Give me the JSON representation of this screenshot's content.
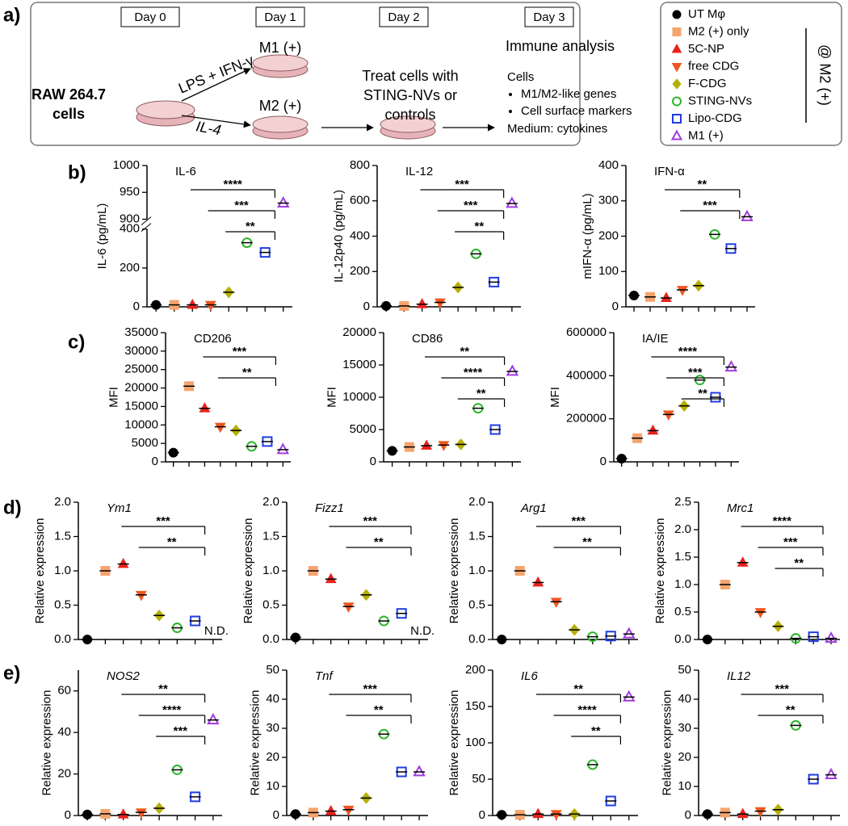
{
  "panel_labels": [
    "a)",
    "b)",
    "c)",
    "d)",
    "e)"
  ],
  "diagram": {
    "days": [
      "Day 0",
      "Day 1",
      "Day 2",
      "Day 3"
    ],
    "start": [
      "RAW 264.7",
      "cells"
    ],
    "m1_treatment": "LPS + IFN-γ",
    "m2_treatment": "IL-4",
    "m1": "M1 (+)",
    "m2": "M2 (+)",
    "treat": [
      "Treat cells with",
      "STING-NVs or",
      "controls"
    ],
    "analysis": "Immune analysis",
    "cells": "Cells",
    "bullets": [
      "M1/M2-like genes",
      "Cell surface markers"
    ],
    "medium": "Medium: cytokines"
  },
  "legend": {
    "entries": [
      {
        "name": "UT Mφ",
        "color": "#000000",
        "marker": "circle",
        "open": false
      },
      {
        "name": "M2 (+) only",
        "color": "#f5a46e",
        "marker": "square",
        "open": false
      },
      {
        "name": "5C-NP",
        "color": "#e8231d",
        "marker": "triangle",
        "open": false
      },
      {
        "name": "free CDG",
        "color": "#f0561e",
        "marker": "triangle-down",
        "open": false
      },
      {
        "name": "F-CDG",
        "color": "#b5b000",
        "marker": "diamond",
        "open": false
      },
      {
        "name": "STING-NVs",
        "color": "#2db52d",
        "marker": "circle",
        "open": true
      },
      {
        "name": "Lipo-CDG",
        "color": "#1f3de0",
        "marker": "square",
        "open": true
      },
      {
        "name": "M1 (+)",
        "color": "#a13be0",
        "marker": "triangle",
        "open": true
      }
    ],
    "bracket_label": "@ M2 (+)"
  },
  "chart_data": [
    {
      "type": "dot",
      "title": "IL-6",
      "ylabel": "IL-6 (pg/mL)",
      "ylim": [
        0,
        1000
      ],
      "axis_break": [
        400,
        900
      ],
      "yticks": [
        0,
        200,
        400,
        900,
        950,
        1000
      ],
      "values": [
        10,
        10,
        10,
        10,
        75,
        330,
        280,
        930
      ],
      "annotations": [
        "****",
        "***",
        "**"
      ]
    },
    {
      "type": "dot",
      "title": "IL-12",
      "ylabel": "IL-12p40 (pg/mL)",
      "ylim": [
        0,
        800
      ],
      "yticks": [
        0,
        200,
        400,
        600,
        800
      ],
      "values": [
        5,
        5,
        15,
        25,
        110,
        300,
        140,
        585
      ],
      "annotations": [
        "***",
        "***",
        "**"
      ]
    },
    {
      "type": "dot",
      "title": "IFN-α",
      "ylabel": "mIFN-α (pg/mL)",
      "ylim": [
        0,
        400
      ],
      "yticks": [
        0,
        100,
        200,
        300,
        400
      ],
      "values": [
        32,
        28,
        25,
        48,
        60,
        205,
        165,
        255
      ],
      "annotations": [
        "**",
        "***"
      ]
    },
    {
      "type": "dot",
      "title": "CD206",
      "ylabel": "MFI",
      "ylim": [
        0,
        35000
      ],
      "yticks": [
        0,
        5000,
        10000,
        15000,
        20000,
        25000,
        30000,
        35000
      ],
      "values": [
        2500,
        20500,
        14500,
        9500,
        8500,
        4200,
        5500,
        3300
      ],
      "annotations": [
        "***",
        "**"
      ]
    },
    {
      "type": "dot",
      "title": "CD86",
      "ylabel": "MFI",
      "ylim": [
        0,
        20000
      ],
      "yticks": [
        0,
        5000,
        10000,
        15000,
        20000
      ],
      "values": [
        1700,
        2300,
        2500,
        2600,
        2700,
        8300,
        5000,
        14000
      ],
      "annotations": [
        "**",
        "****",
        "**"
      ]
    },
    {
      "type": "dot",
      "title": "IA/IE",
      "ylabel": "MFI",
      "ylim": [
        0,
        600000
      ],
      "yticks": [
        0,
        200000,
        400000,
        600000
      ],
      "values": [
        15000,
        110000,
        145000,
        220000,
        260000,
        380000,
        300000,
        440000
      ],
      "annotations": [
        "****",
        "***",
        "**"
      ]
    },
    {
      "type": "dot",
      "title": "Ym1",
      "italic": true,
      "ylabel": "Relative expression",
      "ylim": [
        0,
        2
      ],
      "yticks": [
        {
          "value": 0,
          "label": "0.0"
        },
        {
          "value": 0.5,
          "label": "0.5"
        },
        {
          "value": 1,
          "label": "1.0"
        },
        {
          "value": 1.5,
          "label": "1.5"
        },
        {
          "value": 2,
          "label": "2.0"
        }
      ],
      "values": [
        0,
        1.0,
        1.1,
        0.65,
        0.35,
        0.17,
        0.27,
        null
      ],
      "value_labels": [
        null,
        null,
        null,
        null,
        null,
        null,
        null,
        "N.D."
      ],
      "annotations": [
        "***",
        "**"
      ]
    },
    {
      "type": "dot",
      "title": "Fizz1",
      "italic": true,
      "ylabel": "Relative expression",
      "ylim": [
        0,
        2
      ],
      "yticks": [
        {
          "value": 0,
          "label": "0.0"
        },
        {
          "value": 0.5,
          "label": "0.5"
        },
        {
          "value": 1,
          "label": "1.0"
        },
        {
          "value": 1.5,
          "label": "1.5"
        },
        {
          "value": 2,
          "label": "2.0"
        }
      ],
      "values": [
        0.03,
        1.0,
        0.88,
        0.48,
        0.65,
        0.27,
        0.38,
        null
      ],
      "value_labels": [
        null,
        null,
        null,
        null,
        null,
        null,
        null,
        "N.D."
      ],
      "annotations": [
        "***",
        "**"
      ]
    },
    {
      "type": "dot",
      "title": "Arg1",
      "italic": true,
      "ylabel": "Relative expression",
      "ylim": [
        0,
        2
      ],
      "yticks": [
        {
          "value": 0,
          "label": "0.0"
        },
        {
          "value": 0.5,
          "label": "0.5"
        },
        {
          "value": 1,
          "label": "1.0"
        },
        {
          "value": 1.5,
          "label": "1.5"
        },
        {
          "value": 2,
          "label": "2.0"
        }
      ],
      "values": [
        0,
        1.0,
        0.83,
        0.55,
        0.14,
        0.04,
        0.05,
        0.08
      ],
      "annotations": [
        "***",
        "**"
      ]
    },
    {
      "type": "dot",
      "title": "Mrc1",
      "italic": true,
      "ylabel": "Relative expression",
      "ylim": [
        0,
        2.5
      ],
      "yticks": [
        {
          "value": 0,
          "label": "0.0"
        },
        {
          "value": 0.5,
          "label": "0.5"
        },
        {
          "value": 1,
          "label": "1.0"
        },
        {
          "value": 1.5,
          "label": "1.5"
        },
        {
          "value": 2,
          "label": "2.0"
        },
        {
          "value": 2.5,
          "label": "2.5"
        }
      ],
      "values": [
        0,
        1.0,
        1.4,
        0.5,
        0.24,
        0.02,
        0.05,
        0.02
      ],
      "annotations": [
        "****",
        "***",
        "**"
      ]
    },
    {
      "type": "dot",
      "title": "NOS2",
      "italic": true,
      "ylabel": "Relative expression",
      "ylim": [
        0,
        70
      ],
      "yticks": [
        0,
        20,
        40,
        60
      ],
      "values": [
        0.5,
        0.8,
        0.5,
        1.5,
        3.5,
        22,
        9,
        46
      ],
      "annotations": [
        "**",
        "****",
        "***"
      ]
    },
    {
      "type": "dot",
      "title": "Tnf",
      "italic": true,
      "ylabel": "Relative expression",
      "ylim": [
        0,
        50
      ],
      "yticks": [
        0,
        10,
        20,
        30,
        40,
        50
      ],
      "values": [
        0.5,
        1,
        1.5,
        2,
        6,
        28,
        15,
        15
      ],
      "annotations": [
        "***",
        "**"
      ]
    },
    {
      "type": "dot",
      "title": "IL6",
      "italic": true,
      "ylabel": "Relative expression",
      "ylim": [
        0,
        200
      ],
      "yticks": [
        0,
        50,
        100,
        150,
        200
      ],
      "values": [
        1,
        1,
        2,
        2,
        2,
        70,
        20,
        163
      ],
      "annotations": [
        "**",
        "****",
        "**"
      ]
    },
    {
      "type": "dot",
      "title": "IL12",
      "italic": true,
      "ylabel": "Relative expression",
      "ylim": [
        0,
        50
      ],
      "yticks": [
        0,
        10,
        20,
        30,
        40,
        50
      ],
      "values": [
        0.5,
        1,
        0.5,
        1.5,
        2,
        31,
        12.5,
        14
      ],
      "annotations": [
        "***",
        "**"
      ]
    }
  ]
}
